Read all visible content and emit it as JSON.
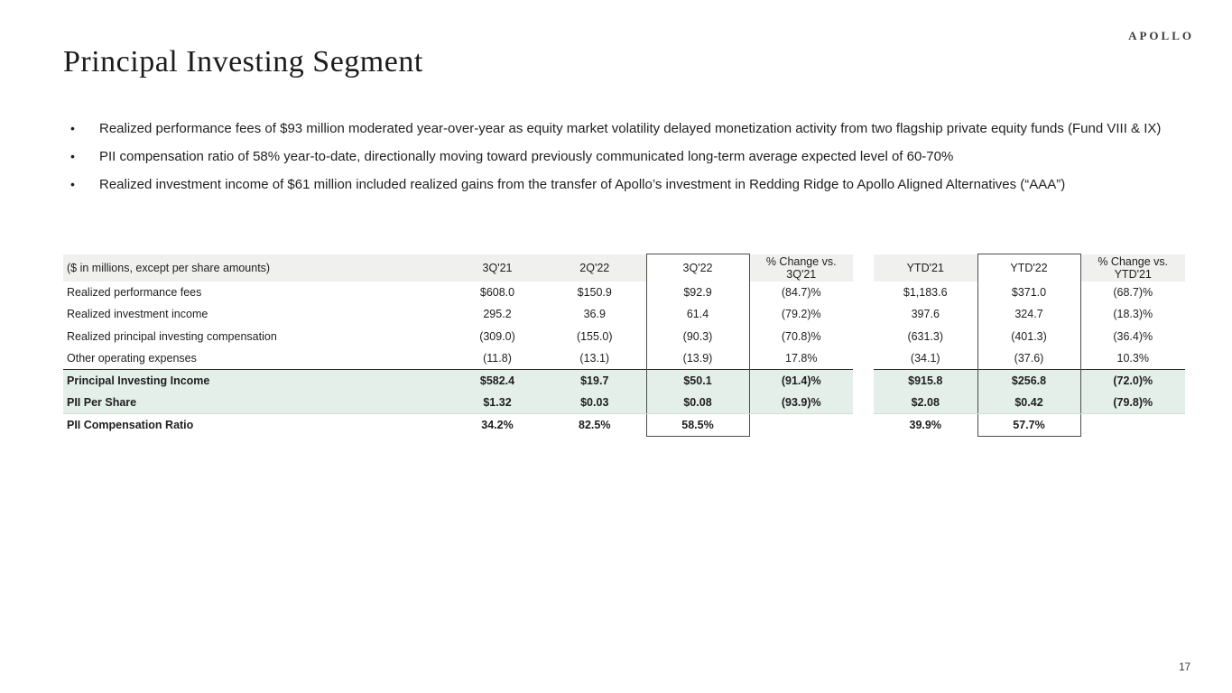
{
  "logo": "APOLLO",
  "title": "Principal Investing Segment",
  "bullets": [
    "Realized performance fees of $93 million moderated year-over-year as equity market volatility delayed monetization activity from two flagship private equity funds (Fund VIII & IX)",
    "PII compensation ratio of 58% year-to-date, directionally moving toward previously communicated long-term average expected level of 60-70%",
    "Realized investment income of $61 million included realized gains from the transfer of Apollo’s investment in Redding Ridge to Apollo Aligned Alternatives (“AAA”)"
  ],
  "table": {
    "label_header": "($ in millions, except per share amounts)",
    "columns": [
      "3Q'21",
      "2Q'22",
      "3Q'22",
      "% Change vs. 3Q'21",
      "YTD'21",
      "YTD'22",
      "% Change vs. YTD'21"
    ],
    "boxed_columns": [
      2,
      5
    ],
    "rows": [
      {
        "label": "Realized performance fees",
        "values": [
          "$608.0",
          "$150.9",
          "$92.9",
          "(84.7)%",
          "$1,183.6",
          "$371.0",
          "(68.7)%"
        ],
        "bold": false,
        "highlight": false,
        "topline": false,
        "subline": false
      },
      {
        "label": "Realized investment income",
        "values": [
          "295.2",
          "36.9",
          "61.4",
          "(79.2)%",
          "397.6",
          "324.7",
          "(18.3)%"
        ],
        "bold": false,
        "highlight": false,
        "topline": false,
        "subline": false
      },
      {
        "label": "Realized principal investing compensation",
        "values": [
          "(309.0)",
          "(155.0)",
          "(90.3)",
          "(70.8)%",
          "(631.3)",
          "(401.3)",
          "(36.4)%"
        ],
        "bold": false,
        "highlight": false,
        "topline": false,
        "subline": false
      },
      {
        "label": "Other operating expenses",
        "values": [
          "(11.8)",
          "(13.1)",
          "(13.9)",
          "17.8%",
          "(34.1)",
          "(37.6)",
          "10.3%"
        ],
        "bold": false,
        "highlight": false,
        "topline": false,
        "subline": false
      },
      {
        "label": "Principal Investing Income",
        "values": [
          "$582.4",
          "$19.7",
          "$50.1",
          "(91.4)%",
          "$915.8",
          "$256.8",
          "(72.0)%"
        ],
        "bold": true,
        "highlight": true,
        "topline": true,
        "subline": false
      },
      {
        "label": "PII Per Share",
        "values": [
          "$1.32",
          "$0.03",
          "$0.08",
          "(93.9)%",
          "$2.08",
          "$0.42",
          "(79.8)%"
        ],
        "bold": true,
        "highlight": true,
        "topline": false,
        "subline": true
      },
      {
        "label": "PII Compensation Ratio",
        "values": [
          "34.2%",
          "82.5%",
          "58.5%",
          "",
          "39.9%",
          "57.7%",
          ""
        ],
        "bold": true,
        "highlight": false,
        "topline": false,
        "subline": false
      }
    ]
  },
  "page_number": "17",
  "colors": {
    "highlight_row_bg": "#e4efea",
    "header_row_bg": "#f0f0ee",
    "box_border": "#4d4d4d"
  }
}
